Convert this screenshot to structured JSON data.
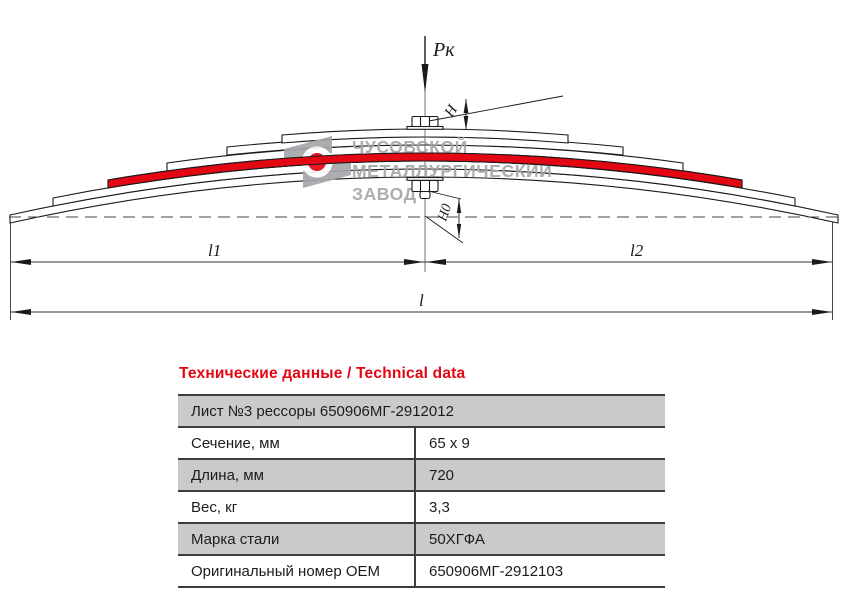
{
  "watermark": {
    "line1": "ЧУСОВСКОЙ",
    "line2": "МЕТАЛЛУРГИЧЕСКИЙ",
    "line3": "ЗАВОД"
  },
  "drawing": {
    "force_label": "Pк",
    "dim_l1": "l1",
    "dim_l2": "l2",
    "dim_l": "l",
    "dim_h": "H",
    "dim_h0": "H0",
    "highlighted_leaf": "Лист №3"
  },
  "colors": {
    "accent_red": "#e30613",
    "watermark_grey": "#a5a7aa",
    "row_grey": "#c9cacb",
    "line_dark": "#3d3d3d"
  },
  "table": {
    "title": "Технические данные / Technical data",
    "header_row": "Лист №3 рессоры 650906МГ-2912012",
    "rows": [
      {
        "label": "Сечение, мм",
        "value": "65 x 9"
      },
      {
        "label": "Длина, мм",
        "value": "720"
      },
      {
        "label": "Вес, кг",
        "value": "3,3"
      },
      {
        "label": "Марка стали",
        "value": "50ХГФА"
      },
      {
        "label": "Оригинальный номер OEM",
        "value": "650906МГ-2912103"
      }
    ]
  }
}
